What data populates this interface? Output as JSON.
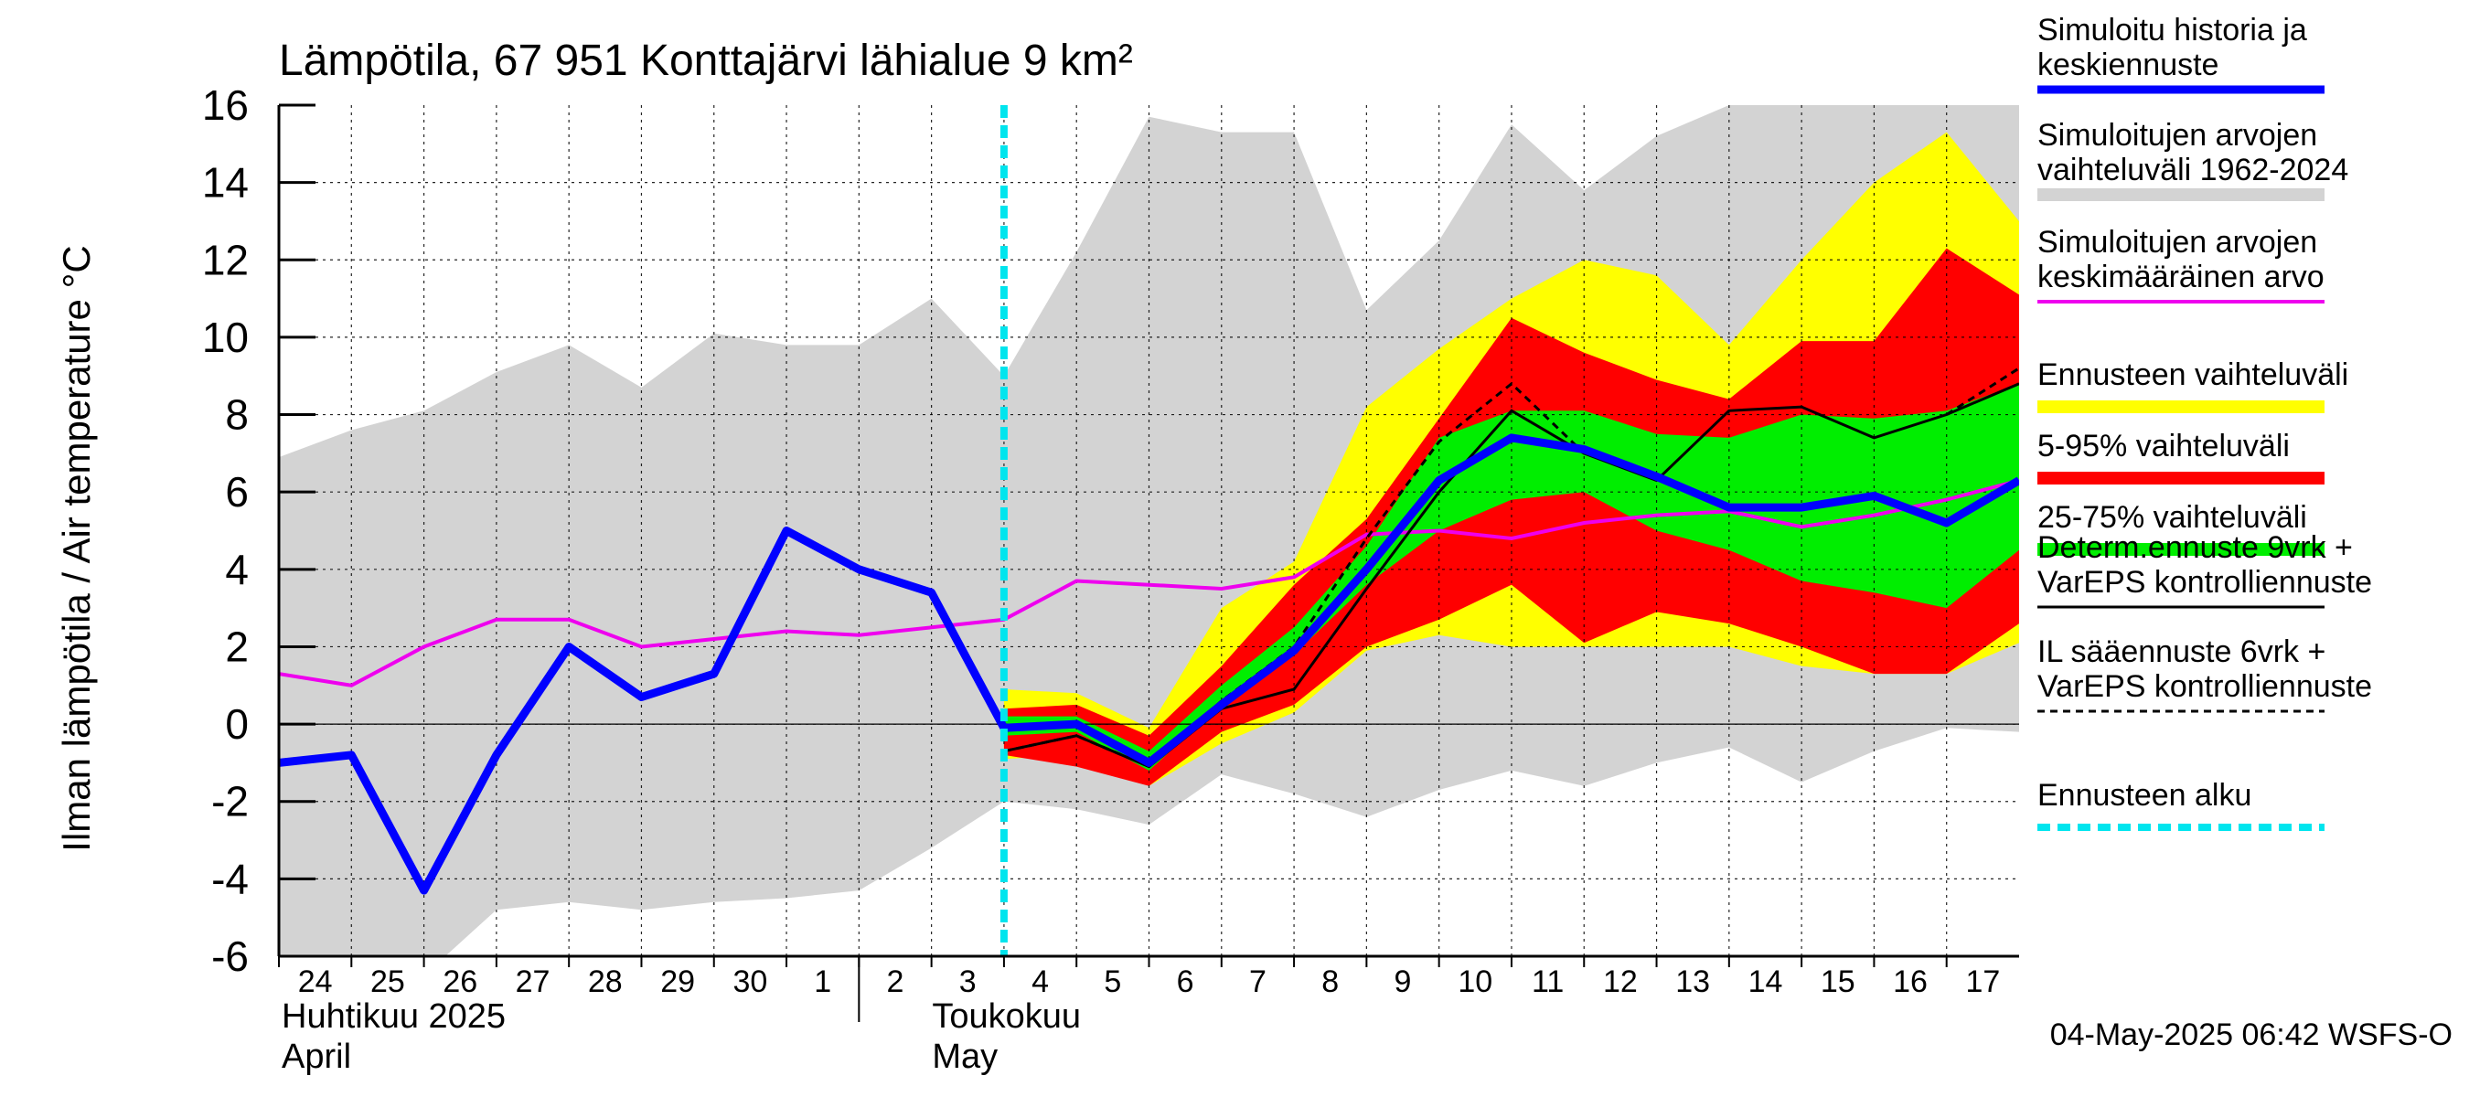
{
  "chart_data": {
    "type": "area",
    "title": "Lämpötila, 67 951 Konttajärvi lähialue 9 km²",
    "ylabel": "Ilman lämpötila / Air temperature   °C",
    "ylim": [
      -6,
      16
    ],
    "yticks": [
      -6,
      -4,
      -2,
      0,
      2,
      4,
      6,
      8,
      10,
      12,
      14,
      16
    ],
    "x_start": "2025-04-24",
    "x_end": "2025-05-18",
    "day_labels": [
      "24",
      "25",
      "26",
      "27",
      "28",
      "29",
      "30",
      "1",
      "2",
      "3",
      "4",
      "5",
      "6",
      "7",
      "8",
      "9",
      "10",
      "11",
      "12",
      "13",
      "14",
      "15",
      "16",
      "17"
    ],
    "month_labels": [
      {
        "fi": "Huhtikuu  2025",
        "en": "April",
        "date": "2025-04-24"
      },
      {
        "fi": "Toukokuu",
        "en": "May",
        "date": "2025-05-02"
      }
    ],
    "forecast_start": "2025-05-04",
    "timestamp": "04-May-2025 06:42 WSFS-O",
    "history_range": {
      "x": [
        "2025-04-24",
        "2025-04-25",
        "2025-04-26",
        "2025-04-27",
        "2025-04-28",
        "2025-04-29",
        "2025-04-30",
        "2025-05-01",
        "2025-05-02",
        "2025-05-03",
        "2025-05-04",
        "2025-05-05",
        "2025-05-06",
        "2025-05-07",
        "2025-05-08",
        "2025-05-09",
        "2025-05-10",
        "2025-05-11",
        "2025-05-12",
        "2025-05-13",
        "2025-05-14",
        "2025-05-15",
        "2025-05-16",
        "2025-05-17",
        "2025-05-18"
      ],
      "low": [
        -8.0,
        -7.5,
        -6.5,
        -4.8,
        -4.6,
        -4.8,
        -4.6,
        -4.5,
        -4.3,
        -3.2,
        -2.0,
        -2.2,
        -2.6,
        -1.3,
        -1.8,
        -2.4,
        -1.7,
        -1.2,
        -1.6,
        -1.0,
        -0.6,
        -1.5,
        -0.7,
        -0.1,
        -0.2
      ],
      "high": [
        6.9,
        7.6,
        8.1,
        9.1,
        9.8,
        8.7,
        10.1,
        9.8,
        9.8,
        11.0,
        9.0,
        12.2,
        15.7,
        15.3,
        15.3,
        10.7,
        12.5,
        15.5,
        13.8,
        15.2,
        16.0,
        16.0,
        16.0,
        16.0,
        16.0
      ]
    },
    "history_mean": {
      "x": [
        "2025-04-24",
        "2025-04-25",
        "2025-04-26",
        "2025-04-27",
        "2025-04-28",
        "2025-04-29",
        "2025-04-30",
        "2025-05-01",
        "2025-05-02",
        "2025-05-03",
        "2025-05-04",
        "2025-05-05",
        "2025-05-06",
        "2025-05-07",
        "2025-05-08",
        "2025-05-09",
        "2025-05-10",
        "2025-05-11",
        "2025-05-12",
        "2025-05-13",
        "2025-05-14",
        "2025-05-15",
        "2025-05-16",
        "2025-05-17",
        "2025-05-18"
      ],
      "y": [
        1.3,
        1.0,
        2.0,
        2.7,
        2.7,
        2.0,
        2.2,
        2.4,
        2.3,
        2.5,
        2.7,
        3.7,
        3.6,
        3.5,
        3.8,
        4.9,
        5.0,
        4.8,
        5.2,
        5.4,
        5.5,
        5.1,
        5.4,
        5.8,
        6.3
      ]
    },
    "forecast_x": [
      "2025-05-04",
      "2025-05-05",
      "2025-05-06",
      "2025-05-07",
      "2025-05-08",
      "2025-05-09",
      "2025-05-10",
      "2025-05-11",
      "2025-05-12",
      "2025-05-13",
      "2025-05-14",
      "2025-05-15",
      "2025-05-16",
      "2025-05-17",
      "2025-05-18"
    ],
    "bands": {
      "full_range": {
        "low": [
          -0.9,
          -0.8,
          -1.6,
          -0.5,
          0.3,
          1.9,
          2.3,
          2.0,
          2.0,
          2.0,
          2.0,
          1.5,
          1.3,
          1.3,
          2.1
        ],
        "high": [
          0.9,
          0.8,
          -0.1,
          3.0,
          4.2,
          8.2,
          9.7,
          11.0,
          12.0,
          11.6,
          9.8,
          12.0,
          14.0,
          15.3,
          13.0
        ]
      },
      "p5_95": {
        "low": [
          -0.8,
          -1.1,
          -1.6,
          -0.2,
          0.5,
          2.0,
          2.7,
          3.6,
          2.1,
          2.9,
          2.6,
          2.0,
          1.3,
          1.3,
          2.6
        ],
        "high": [
          0.4,
          0.5,
          -0.3,
          1.5,
          3.6,
          5.3,
          7.9,
          10.5,
          9.6,
          8.9,
          8.4,
          9.9,
          9.9,
          12.3,
          11.1
        ]
      },
      "p25_75": {
        "low": [
          -0.3,
          -0.2,
          -1.2,
          0.5,
          1.8,
          3.6,
          5.0,
          5.8,
          6.0,
          5.0,
          4.5,
          3.7,
          3.4,
          3.0,
          4.5
        ],
        "high": [
          0.2,
          0.2,
          -0.7,
          1.0,
          2.5,
          4.6,
          7.4,
          8.1,
          8.1,
          7.5,
          7.4,
          8.0,
          7.9,
          8.1,
          8.8
        ]
      }
    },
    "series": [
      {
        "name": "Simuloitu historia ja keskiennuste",
        "x": [
          "2025-04-24",
          "2025-04-25",
          "2025-04-26",
          "2025-04-27",
          "2025-04-28",
          "2025-04-29",
          "2025-04-30",
          "2025-05-01",
          "2025-05-02",
          "2025-05-03",
          "2025-05-04",
          "2025-05-05",
          "2025-05-06",
          "2025-05-07",
          "2025-05-08",
          "2025-05-09",
          "2025-05-10",
          "2025-05-11",
          "2025-05-12",
          "2025-05-13",
          "2025-05-14",
          "2025-05-15",
          "2025-05-16",
          "2025-05-17",
          "2025-05-18"
        ],
        "values": [
          -1.0,
          -0.8,
          -4.3,
          -0.8,
          2.0,
          0.7,
          1.3,
          5.0,
          4.0,
          3.4,
          -0.1,
          0.0,
          -1.0,
          0.5,
          1.9,
          4.0,
          6.3,
          7.4,
          7.1,
          6.4,
          5.6,
          5.6,
          5.9,
          5.2,
          6.3
        ]
      },
      {
        "name": "Determ.ennuste 9vrk + VarEPS kontrolliennuste",
        "x": [
          "2025-05-04",
          "2025-05-05",
          "2025-05-06",
          "2025-05-07",
          "2025-05-08",
          "2025-05-09",
          "2025-05-10",
          "2025-05-11",
          "2025-05-12",
          "2025-05-13",
          "2025-05-14",
          "2025-05-15",
          "2025-05-16",
          "2025-05-17",
          "2025-05-18"
        ],
        "values": [
          -0.7,
          -0.3,
          -1.1,
          0.4,
          0.9,
          3.5,
          6.0,
          8.1,
          7.0,
          6.3,
          8.1,
          8.2,
          7.4,
          8.0,
          8.8
        ]
      },
      {
        "name": "IL sääennuste 6vrk + VarEPS kontrolliennuste",
        "x": [
          "2025-05-04",
          "2025-05-05",
          "2025-05-06",
          "2025-05-07",
          "2025-05-08",
          "2025-05-09",
          "2025-05-10",
          "2025-05-11",
          "2025-05-12",
          "2025-05-13",
          "2025-05-14",
          "2025-05-15",
          "2025-05-16",
          "2025-05-17",
          "2025-05-18"
        ],
        "values": [
          -0.7,
          -0.3,
          -1.1,
          0.6,
          2.0,
          4.8,
          7.3,
          8.8,
          7.0,
          6.4,
          null,
          null,
          null,
          8.0,
          9.2
        ]
      }
    ],
    "legend": [
      {
        "text": "Simuloitu historia ja",
        "text2": "keskiennuste",
        "color": "#0000ff",
        "style": "thick"
      },
      {
        "text": "Simuloitujen arvojen",
        "text2": "vaihteluväli 1962-2024",
        "color": "#d3d3d3",
        "style": "band"
      },
      {
        "text": "Simuloitujen arvojen",
        "text2": "keskimääräinen arvo",
        "color": "#ee00ee",
        "style": "line"
      },
      {
        "text": "Ennusteen vaihteluväli",
        "text2": "",
        "color": "#ffff00",
        "style": "band"
      },
      {
        "text": "5-95% vaihteluväli",
        "text2": "",
        "color": "#ff0000",
        "style": "band"
      },
      {
        "text": "25-75% vaihteluväli",
        "text2": "",
        "color": "#00ee00",
        "style": "band"
      },
      {
        "text": "Determ.ennuste 9vrk +",
        "text2": "VarEPS kontrolliennuste",
        "color": "#000000",
        "style": "thin"
      },
      {
        "text": "IL sääennuste 6vrk  +",
        "text2": "  VarEPS kontrolliennuste",
        "color": "#000000",
        "style": "dashed"
      },
      {
        "text": "Ennusteen alku",
        "text2": "",
        "color": "#00e5ee",
        "style": "cyan-dashed"
      }
    ],
    "colors": {
      "history_band": "#d3d3d3",
      "full_range": "#ffff00",
      "p5_95": "#ff0000",
      "p25_75": "#00ee00",
      "mean": "#ee00ee",
      "median": "#0000ff",
      "forecast_start": "#00e5ee"
    }
  }
}
